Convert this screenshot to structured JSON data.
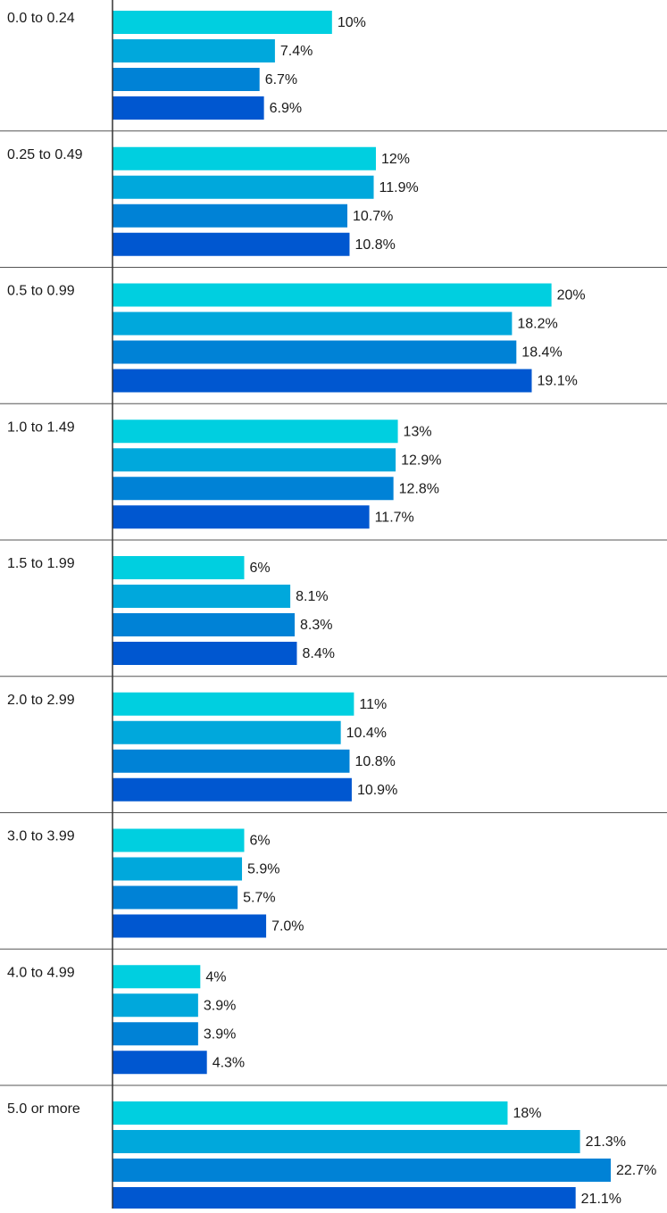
{
  "chart_data": {
    "type": "hbar",
    "categories": [
      "0.0 to 0.24",
      "0.25 to 0.49",
      "0.5 to 0.99",
      "1.0 to 1.49",
      "1.5 to 1.99",
      "2.0 to 2.99",
      "3.0 to 3.99",
      "4.0 to 4.99",
      "5.0 or more"
    ],
    "series": [
      {
        "color": "#00cfe0",
        "values": [
          10,
          12,
          20,
          13,
          6,
          11,
          6,
          4,
          18
        ],
        "value_labels": [
          "10%",
          "12%",
          "20%",
          "13%",
          "6%",
          "11%",
          "6%",
          "4%",
          "18%"
        ]
      },
      {
        "color": "#00a8dc",
        "values": [
          7.4,
          11.9,
          18.2,
          12.9,
          8.1,
          10.4,
          5.9,
          3.9,
          21.3
        ],
        "value_labels": [
          "7.4%",
          "11.9%",
          "18.2%",
          "12.9%",
          "8.1%",
          "10.4%",
          "5.9%",
          "3.9%",
          "21.3%"
        ]
      },
      {
        "color": "#0082d6",
        "values": [
          6.7,
          10.7,
          18.4,
          12.8,
          8.3,
          10.8,
          5.7,
          3.9,
          22.7
        ],
        "value_labels": [
          "6.7%",
          "10.7%",
          "18.4%",
          "12.8%",
          "8.3%",
          "10.8%",
          "5.7%",
          "3.9%",
          "22.7%"
        ]
      },
      {
        "color": "#0057d0",
        "values": [
          6.9,
          10.8,
          19.1,
          11.7,
          8.4,
          10.9,
          7.0,
          4.3,
          21.1
        ],
        "value_labels": [
          "6.9%",
          "10.8%",
          "19.1%",
          "11.7%",
          "8.4%",
          "10.9%",
          "7.0%",
          "4.3%",
          "21.1%"
        ]
      }
    ]
  }
}
